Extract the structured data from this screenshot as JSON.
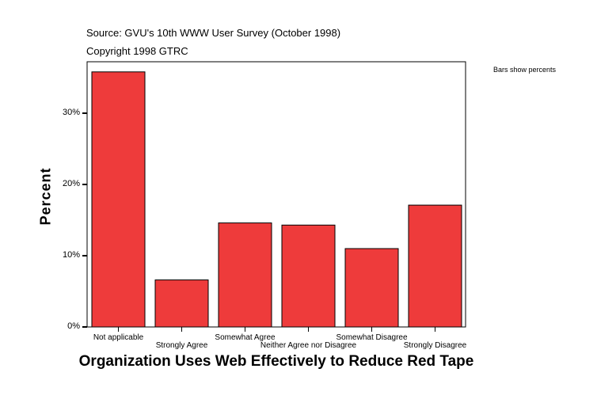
{
  "chart_data": {
    "type": "bar",
    "source": "Source: GVU's 10th WWW User Survey (October 1998)",
    "copyright": "Copyright 1998 GTRC",
    "note": "Bars show percents",
    "title": "Organization Uses Web Effectively to Reduce Red Tape",
    "xlabel": "Organization Uses Web Effectively to Reduce Red Tape",
    "ylabel": "Percent",
    "categories": [
      "Not applicable",
      "Strongly Agree",
      "Somewhat Agree",
      "Neither Agree nor Disagree",
      "Somewhat Disagree",
      "Strongly Disagree"
    ],
    "values": [
      35.8,
      6.6,
      14.6,
      14.3,
      11.0,
      17.1
    ],
    "yticks": [
      0,
      10,
      20,
      30
    ],
    "ytick_labels": [
      "0%",
      "10%",
      "20%",
      "30%"
    ],
    "ylim": [
      0,
      37.2
    ],
    "grid": false,
    "bar_color": "#ee3b3b"
  }
}
